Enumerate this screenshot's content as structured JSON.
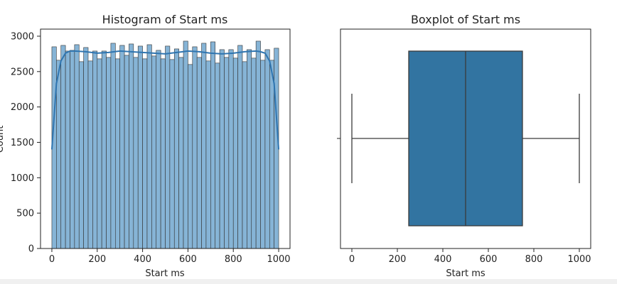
{
  "figure": {
    "background": "#ffffff",
    "bar_color": "#86b4d6",
    "bar_edge": "#333333",
    "kde_color": "#2f75b0",
    "box_color": "#3274a1",
    "line_color": "#3a3a3a"
  },
  "chart_data": [
    {
      "type": "bar",
      "subtype": "histogram",
      "title": "Histogram of Start ms",
      "xlabel": "Start ms",
      "ylabel": "Count",
      "xlim": [
        -50,
        1050
      ],
      "ylim": [
        0,
        3100
      ],
      "xticks": [
        0,
        200,
        400,
        600,
        800,
        1000
      ],
      "yticks": [
        0,
        500,
        1000,
        1500,
        2000,
        2500,
        3000
      ],
      "bin_edges": [
        0,
        20,
        40,
        60,
        80,
        100,
        120,
        140,
        160,
        180,
        200,
        220,
        240,
        260,
        280,
        300,
        320,
        340,
        360,
        380,
        400,
        420,
        440,
        460,
        480,
        500,
        520,
        540,
        560,
        580,
        600,
        620,
        640,
        660,
        680,
        700,
        720,
        740,
        760,
        780,
        800,
        820,
        840,
        860,
        880,
        900,
        920,
        940,
        960,
        980,
        1000
      ],
      "values": [
        2850,
        2660,
        2870,
        2790,
        2800,
        2880,
        2640,
        2840,
        2650,
        2790,
        2680,
        2790,
        2700,
        2900,
        2680,
        2870,
        2730,
        2890,
        2700,
        2860,
        2680,
        2880,
        2720,
        2800,
        2680,
        2860,
        2670,
        2820,
        2700,
        2930,
        2600,
        2850,
        2700,
        2900,
        2650,
        2920,
        2620,
        2810,
        2700,
        2810,
        2690,
        2870,
        2640,
        2810,
        2690,
        2930,
        2660,
        2810,
        2660,
        2830
      ],
      "kde": {
        "x": [
          0,
          20,
          40,
          60,
          80,
          100,
          150,
          200,
          250,
          300,
          350,
          400,
          450,
          500,
          550,
          600,
          650,
          700,
          750,
          800,
          850,
          900,
          920,
          940,
          960,
          980,
          1000
        ],
        "y": [
          1400,
          2330,
          2650,
          2760,
          2790,
          2790,
          2780,
          2760,
          2770,
          2790,
          2780,
          2770,
          2760,
          2750,
          2770,
          2790,
          2780,
          2760,
          2750,
          2760,
          2780,
          2790,
          2780,
          2760,
          2650,
          2330,
          1400
        ]
      }
    },
    {
      "type": "box",
      "title": "Boxplot of Start ms",
      "xlabel": "Start ms",
      "xlim": [
        -50,
        1050
      ],
      "xticks": [
        0,
        200,
        400,
        600,
        800,
        1000
      ],
      "whisker_low": 0,
      "q1": 250,
      "median": 500,
      "q3": 750,
      "whisker_high": 1000
    }
  ]
}
